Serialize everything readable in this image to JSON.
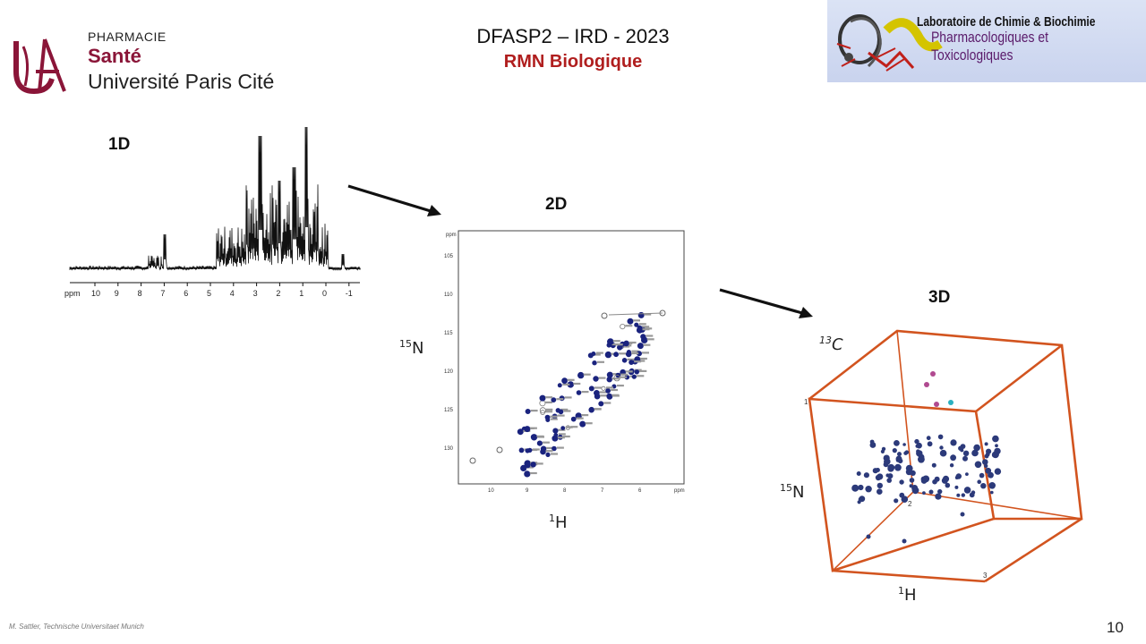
{
  "logo_left": {
    "line1": "PHARMACIE",
    "line2": "Santé",
    "line3": "Université Paris Cité"
  },
  "title": {
    "main": "DFASP2 – IRD - 2023",
    "subtitle": "RMN Biologique"
  },
  "logo_right": {
    "line1": "Laboratoire de Chimie & Biochimie",
    "line2": "Pharmacologiques et Toxicologiques"
  },
  "spectrum_1d": {
    "label": "1D",
    "axis_unit": "ppm",
    "ticks": [
      "10",
      "9",
      "8",
      "7",
      "6",
      "5",
      "4",
      "3",
      "2",
      "1",
      "0",
      "-1"
    ]
  },
  "spectrum_2d": {
    "label": "2D",
    "y_axis": {
      "nucleus_mass": "15",
      "nucleus": "N"
    },
    "x_axis": {
      "nucleus_mass": "1",
      "nucleus": "H"
    },
    "x_ticks": [
      "10",
      "9",
      "8",
      "7",
      "6"
    ],
    "x_unit": "ppm",
    "y_ticks": [
      "105",
      "110",
      "115",
      "120",
      "125",
      "130"
    ],
    "y_unit": "ppm"
  },
  "spectrum_3d": {
    "label": "3D",
    "z_axis": {
      "nucleus_mass": "13",
      "nucleus": "C"
    },
    "y_axis": {
      "nucleus_mass": "15",
      "nucleus": "N"
    },
    "x_axis": {
      "nucleus_mass": "1",
      "nucleus": "H"
    },
    "corner_labels": [
      "1",
      "2",
      "3"
    ]
  },
  "colors": {
    "brand_red": "#8a1538",
    "subtitle_red": "#b01e1e",
    "peak_blue": "#1a237e",
    "cube_orange": "#d2541f"
  },
  "footer": {
    "credit": "M. Sattler, Technische Universitaet Munich",
    "page_number": "10"
  }
}
